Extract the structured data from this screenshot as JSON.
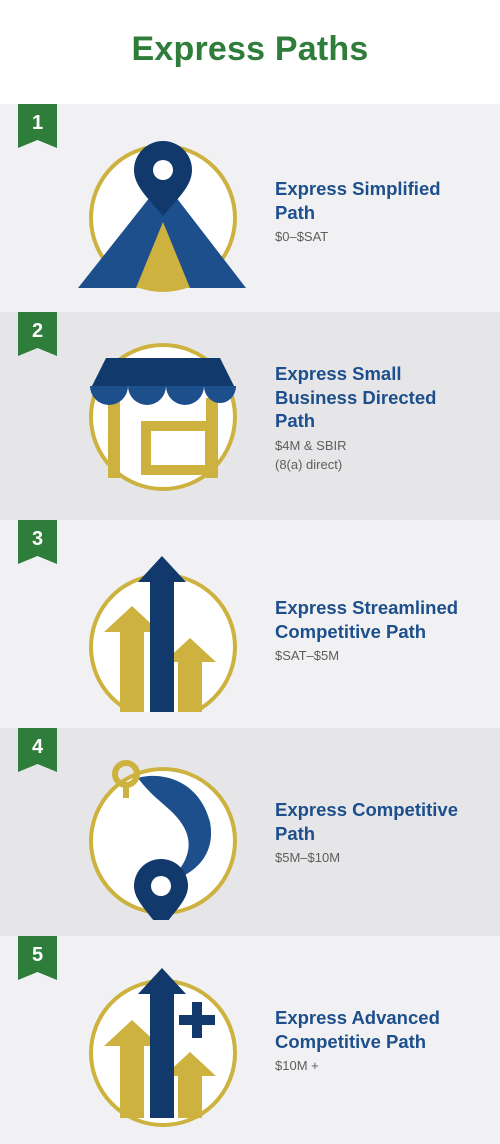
{
  "title": "Express Paths",
  "colors": {
    "title_green": "#2f7d3a",
    "navy": "#12396b",
    "blue": "#1d4f8c",
    "gold": "#cdb23f",
    "row_light": "#f1f1f3",
    "row_dark": "#e6e6e8"
  },
  "paths": [
    {
      "number": "1",
      "name_lines": [
        "Express Simplified",
        "Path"
      ],
      "range_lines": [
        "$0–$SAT"
      ],
      "icon": "location-pin-road-icon"
    },
    {
      "number": "2",
      "name_lines": [
        "Express Small",
        "Business Directed",
        "Path"
      ],
      "range_lines": [
        "$4M & SBIR",
        "(8(a) direct)"
      ],
      "icon": "storefront-icon"
    },
    {
      "number": "3",
      "name_lines": [
        "Express Streamlined",
        "Competitive Path"
      ],
      "range_lines": [
        "$SAT–$5M"
      ],
      "icon": "arrows-up-icon"
    },
    {
      "number": "4",
      "name_lines": [
        "Express Competitive",
        "Path"
      ],
      "range_lines": [
        "$5M–$10M"
      ],
      "icon": "route-pins-icon"
    },
    {
      "number": "5",
      "name_lines": [
        "Express Advanced",
        "Competitive Path"
      ],
      "range_lines": [
        "$10M +"
      ],
      "icon": "arrows-up-plus-icon"
    }
  ]
}
